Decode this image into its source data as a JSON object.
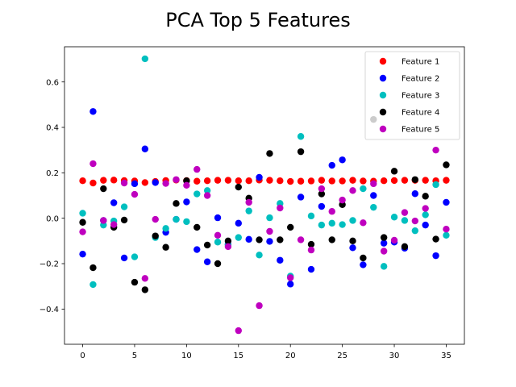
{
  "chart_data": {
    "type": "scatter",
    "title": "PCA Top 5 Features",
    "xlabel": "",
    "ylabel": "",
    "xlim": [
      -1.75,
      36.75
    ],
    "ylim": [
      -0.555,
      0.755
    ],
    "xticks": [
      0,
      5,
      10,
      15,
      20,
      25,
      30,
      35
    ],
    "yticks": [
      -0.4,
      -0.2,
      0.0,
      0.2,
      0.4,
      0.6
    ],
    "ytick_labels": [
      "−0.4",
      "−0.2",
      "0.0",
      "0.2",
      "0.4",
      "0.6"
    ],
    "xtick_labels": [
      "0",
      "5",
      "10",
      "15",
      "20",
      "25",
      "30",
      "35"
    ],
    "grid": false,
    "legend_position": "top-right",
    "series": [
      {
        "name": "Feature 1",
        "color": "#ff0000",
        "x": [
          0,
          1,
          2,
          3,
          4,
          5,
          6,
          7,
          8,
          9,
          10,
          11,
          12,
          13,
          14,
          15,
          16,
          17,
          18,
          19,
          20,
          21,
          22,
          23,
          24,
          25,
          26,
          27,
          28,
          29,
          30,
          31,
          32,
          33,
          34,
          35
        ],
        "y": [
          0.165,
          0.155,
          0.167,
          0.168,
          0.166,
          0.164,
          0.157,
          0.162,
          0.166,
          0.168,
          0.166,
          0.163,
          0.165,
          0.167,
          0.167,
          0.165,
          0.165,
          0.168,
          0.167,
          0.165,
          0.162,
          0.163,
          0.164,
          0.167,
          0.164,
          0.164,
          0.167,
          0.164,
          0.163,
          0.165,
          0.166,
          0.167,
          0.167,
          0.167,
          0.165,
          0.167
        ]
      },
      {
        "name": "Feature 2",
        "color": "#0000ff",
        "x": [
          0,
          1,
          2,
          3,
          4,
          5,
          6,
          7,
          8,
          9,
          10,
          11,
          12,
          13,
          14,
          15,
          16,
          17,
          18,
          19,
          20,
          21,
          22,
          23,
          24,
          25,
          26,
          27,
          28,
          29,
          30,
          31,
          32,
          33,
          34,
          35
        ],
        "y": [
          -0.158,
          0.47,
          -0.01,
          0.068,
          -0.175,
          0.152,
          0.305,
          0.157,
          -0.062,
          -0.005,
          0.072,
          -0.138,
          -0.192,
          0.002,
          -0.115,
          -0.022,
          -0.093,
          0.18,
          -0.102,
          -0.185,
          -0.29,
          0.093,
          -0.225,
          0.052,
          0.233,
          0.257,
          -0.13,
          -0.205,
          0.1,
          -0.11,
          -0.105,
          -0.132,
          0.108,
          -0.03,
          -0.165,
          0.07
        ]
      },
      {
        "name": "Feature 3",
        "color": "#00bfbf",
        "x": [
          0,
          1,
          2,
          3,
          4,
          5,
          6,
          7,
          8,
          9,
          10,
          11,
          12,
          13,
          14,
          15,
          16,
          17,
          18,
          19,
          20,
          21,
          22,
          23,
          24,
          25,
          26,
          27,
          28,
          29,
          30,
          31,
          32,
          33,
          34,
          35
        ],
        "y": [
          0.022,
          -0.292,
          -0.03,
          -0.012,
          0.05,
          -0.17,
          0.702,
          -0.085,
          -0.045,
          -0.005,
          -0.015,
          0.107,
          0.122,
          -0.105,
          -0.118,
          -0.085,
          0.032,
          -0.162,
          0.002,
          0.065,
          -0.255,
          0.36,
          0.01,
          -0.03,
          -0.022,
          -0.028,
          -0.01,
          0.13,
          0.048,
          -0.212,
          0.005,
          -0.01,
          -0.055,
          0.015,
          0.148,
          -0.075
        ]
      },
      {
        "name": "Feature 4",
        "color": "#000000",
        "x": [
          0,
          1,
          2,
          3,
          4,
          5,
          6,
          7,
          8,
          9,
          10,
          11,
          12,
          13,
          14,
          15,
          16,
          17,
          18,
          19,
          20,
          21,
          22,
          23,
          24,
          25,
          26,
          27,
          28,
          29,
          30,
          31,
          32,
          33,
          34,
          35
        ],
        "y": [
          -0.018,
          -0.218,
          0.13,
          -0.04,
          -0.008,
          -0.282,
          -0.315,
          -0.078,
          -0.128,
          0.065,
          0.165,
          -0.04,
          -0.118,
          -0.2,
          -0.1,
          0.137,
          0.088,
          -0.095,
          0.285,
          -0.095,
          -0.04,
          0.293,
          -0.115,
          0.107,
          -0.095,
          0.06,
          -0.1,
          -0.175,
          0.435,
          -0.085,
          0.207,
          -0.125,
          0.17,
          0.097,
          -0.092,
          0.235
        ]
      },
      {
        "name": "Feature 5",
        "color": "#bf00bf",
        "x": [
          0,
          1,
          2,
          3,
          4,
          5,
          6,
          7,
          8,
          9,
          10,
          11,
          12,
          13,
          14,
          15,
          16,
          17,
          18,
          19,
          20,
          21,
          22,
          23,
          24,
          25,
          26,
          27,
          28,
          29,
          30,
          31,
          32,
          33,
          34,
          35
        ],
        "y": [
          -0.06,
          0.24,
          -0.01,
          -0.028,
          0.155,
          0.105,
          -0.265,
          -0.005,
          0.153,
          0.17,
          0.145,
          0.215,
          0.1,
          -0.075,
          -0.125,
          -0.495,
          0.07,
          -0.385,
          -0.058,
          0.045,
          -0.262,
          -0.095,
          -0.14,
          0.13,
          0.03,
          0.08,
          0.122,
          -0.02,
          0.152,
          -0.145,
          -0.097,
          0.025,
          -0.012,
          0.043,
          0.3,
          -0.048
        ]
      }
    ]
  }
}
